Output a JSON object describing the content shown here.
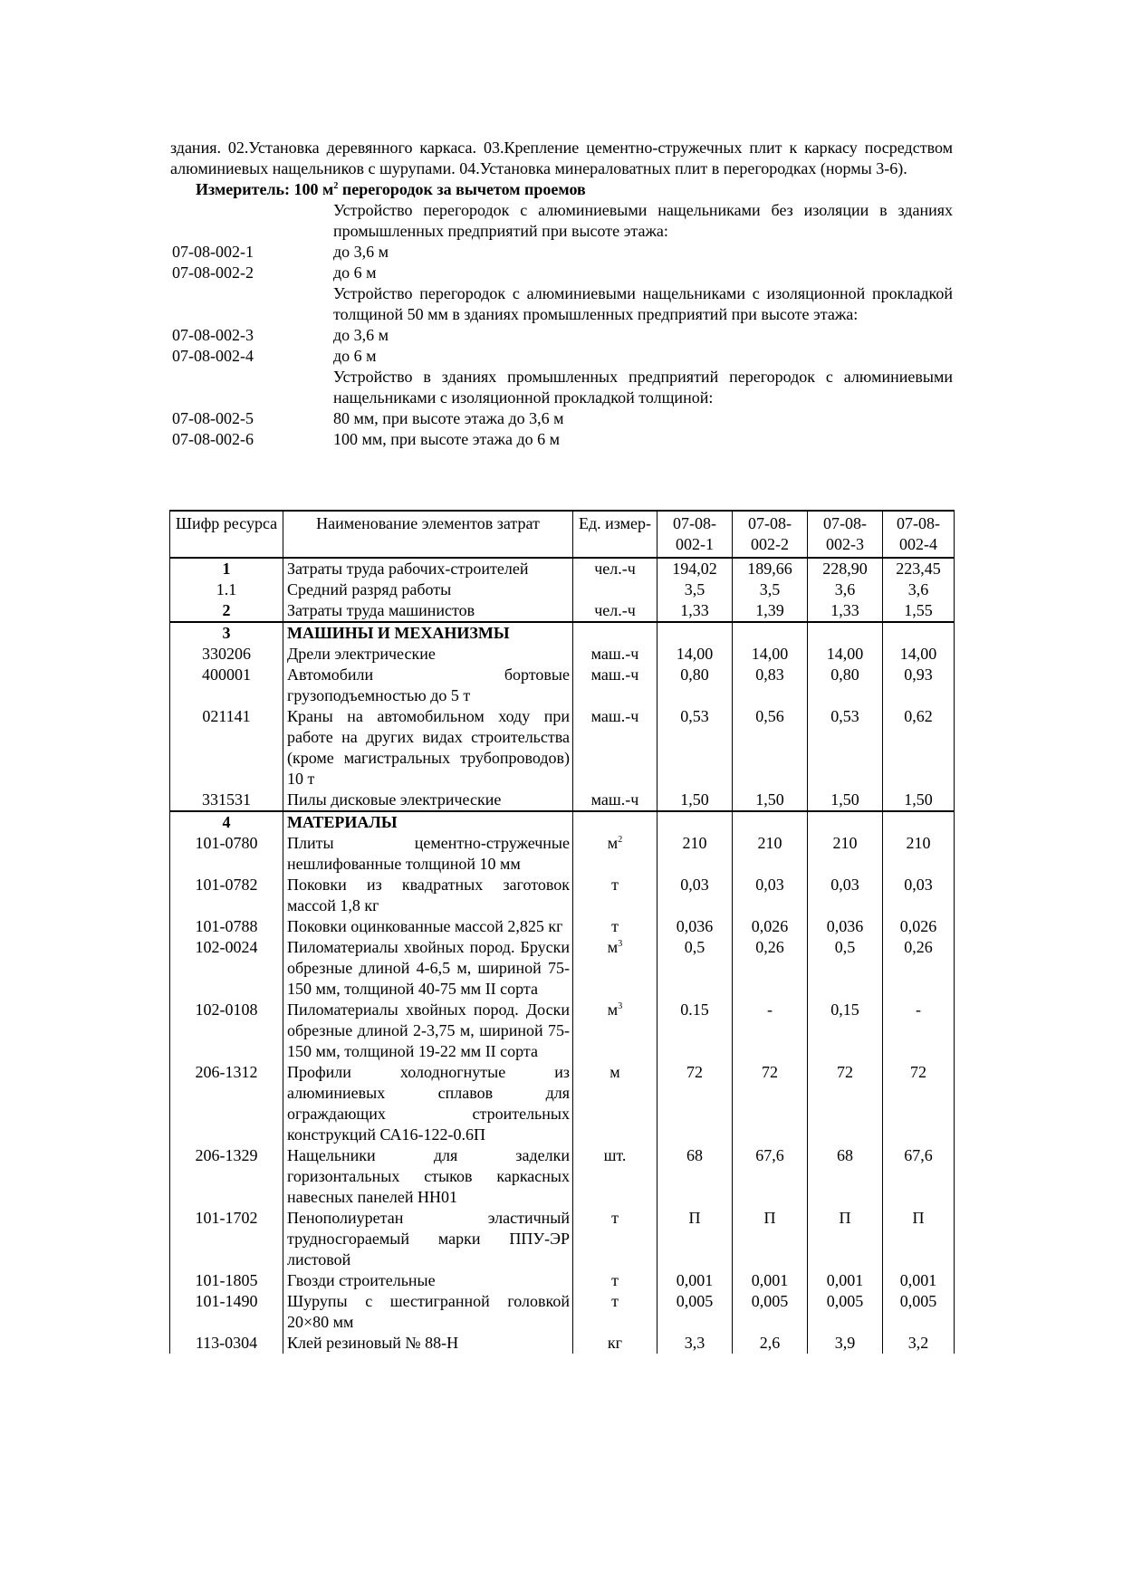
{
  "intro": "здания. 02.Установка деревянного каркаса. 03.Крепление цементно-стружечных плит к каркасу посредством алюминиевых нащельников с шурупами. 04.Установка минераловатных плит в перегородках (нормы 3-6).",
  "measure": {
    "prefix": "Измеритель: 100 м",
    "sup": "2",
    "suffix": " перегородок за вычетом проемов"
  },
  "items": [
    {
      "code": "",
      "text": "Устройство перегородок с алюминиевыми нащельниками без изоляции в зданиях промышленных предприятий при высоте этажа:"
    },
    {
      "code": "07-08-002-1",
      "text": "до 3,6 м"
    },
    {
      "code": "07-08-002-2",
      "text": "до 6 м"
    },
    {
      "code": "",
      "text": "Устройство перегородок с алюминиевыми нащельниками с изоляционной прокладкой толщиной 50 мм в зданиях промышленных предприятий при высоте этажа:"
    },
    {
      "code": "07-08-002-3",
      "text": "до 3,6 м"
    },
    {
      "code": "07-08-002-4",
      "text": "до 6 м"
    },
    {
      "code": "",
      "text": "Устройство в зданиях промышленных предприятий перегородок с алюминиевыми нащельниками с изоляционной прокладкой толщиной:"
    },
    {
      "code": "07-08-002-5",
      "text": "80 мм, при высоте этажа до 3,6 м"
    },
    {
      "code": "07-08-002-6",
      "text": "100 мм, при высоте этажа до 6 м"
    }
  ],
  "table": {
    "headers": [
      "Шифр ресурса",
      "Наименование элементов затрат",
      "Ед. измер-",
      "07-08-002-1",
      "07-08-002-2",
      "07-08-002-3",
      "07-08-002-4"
    ],
    "sections": [
      [
        {
          "code": "1",
          "bold_code": true,
          "name": "Затраты труда рабочих-строителей",
          "unit": "чел.-ч",
          "values": [
            "194,02",
            "189,66",
            "228,90",
            "223,45"
          ]
        },
        {
          "code": "1.1",
          "name": "Средний разряд работы",
          "unit": "",
          "values": [
            "3,5",
            "3,5",
            "3,6",
            "3,6"
          ]
        },
        {
          "code": "2",
          "bold_code": true,
          "name": "Затраты труда машинистов",
          "unit": "чел.-ч",
          "values": [
            "1,33",
            "1,39",
            "1,33",
            "1,55"
          ]
        }
      ],
      [
        {
          "code": "3",
          "bold_code": true,
          "name": "МАШИНЫ И МЕХАНИЗМЫ",
          "bold_name": true,
          "unit": "",
          "values": [
            "",
            "",
            "",
            ""
          ]
        },
        {
          "code": "330206",
          "name": "Дрели электрические",
          "unit": "маш.-ч",
          "values": [
            "14,00",
            "14,00",
            "14,00",
            "14,00"
          ]
        },
        {
          "code": "400001",
          "name": "Автомобили бортовые грузоподъемностью до 5 т",
          "unit": "маш.-ч",
          "values": [
            "0,80",
            "0,83",
            "0,80",
            "0,93"
          ]
        },
        {
          "code": "021141",
          "name": "Краны на автомобильном ходу при работе на других видах строительства (кроме магистральных трубопроводов) 10 т",
          "unit": "маш.-ч",
          "values": [
            "0,53",
            "0,56",
            "0,53",
            "0,62"
          ]
        },
        {
          "code": "331531",
          "name": "Пилы дисковые электрические",
          "unit": "маш.-ч",
          "values": [
            "1,50",
            "1,50",
            "1,50",
            "1,50"
          ]
        }
      ],
      [
        {
          "code": "4",
          "bold_code": true,
          "name": "МАТЕРИАЛЫ",
          "bold_name": true,
          "unit": "",
          "values": [
            "",
            "",
            "",
            ""
          ]
        },
        {
          "code": "101-0780",
          "name": "Плиты цементно-стружечные нешлифованные толщиной 10 мм",
          "unit": "м",
          "unit_sup": "2",
          "values": [
            "210",
            "210",
            "210",
            "210"
          ]
        },
        {
          "code": "101-0782",
          "name": "Поковки из квадратных заготовок массой 1,8 кг",
          "unit": "т",
          "values": [
            "0,03",
            "0,03",
            "0,03",
            "0,03"
          ]
        },
        {
          "code": "101-0788",
          "name": "Поковки оцинкованные массой 2,825 кг",
          "unit": "т",
          "values": [
            "0,036",
            "0,026",
            "0,036",
            "0,026"
          ]
        },
        {
          "code": "102-0024",
          "name": "Пиломатериалы хвойных пород. Бруски обрезные длиной 4-6,5 м, шириной 75-150 мм, толщиной 40-75 мм II сорта",
          "unit": "м",
          "unit_sup": "3",
          "values": [
            "0,5",
            "0,26",
            "0,5",
            "0,26"
          ]
        },
        {
          "code": "102-0108",
          "name": "Пиломатериалы хвойных пород. Доски обрезные длиной 2-3,75 м, шириной 75-150 мм, толщиной 19-22 мм II сорта",
          "unit": "м",
          "unit_sup": "3",
          "values": [
            "0.15",
            "-",
            "0,15",
            "-"
          ]
        },
        {
          "code": "206-1312",
          "name": "Профили холодногнутые из алюминиевых сплавов для ограждающих строительных конструкций СА16-122-0.6П",
          "unit": "м",
          "values": [
            "72",
            "72",
            "72",
            "72"
          ]
        },
        {
          "code": "206-1329",
          "name": "Нащельники для заделки горизонтальных стыков каркасных навесных панелей НН01",
          "unit": "шт.",
          "values": [
            "68",
            "67,6",
            "68",
            "67,6"
          ]
        },
        {
          "code": "101-1702",
          "name": "Пенополиуретан эластичный трудносгораемый марки ППУ-ЭР листовой",
          "unit": "т",
          "values": [
            "П",
            "П",
            "П",
            "П"
          ]
        },
        {
          "code": "101-1805",
          "name": "Гвозди строительные",
          "unit": "т",
          "values": [
            "0,001",
            "0,001",
            "0,001",
            "0,001"
          ]
        },
        {
          "code": "101-1490",
          "name": "Шурупы с шестигранной головкой 20×80 мм",
          "unit": "т",
          "values": [
            "0,005",
            "0,005",
            "0,005",
            "0,005"
          ]
        },
        {
          "code": "113-0304",
          "name": "Клей резиновый № 88-Н",
          "unit": "кг",
          "values": [
            "3,3",
            "2,6",
            "3,9",
            "3,2"
          ]
        }
      ]
    ]
  }
}
